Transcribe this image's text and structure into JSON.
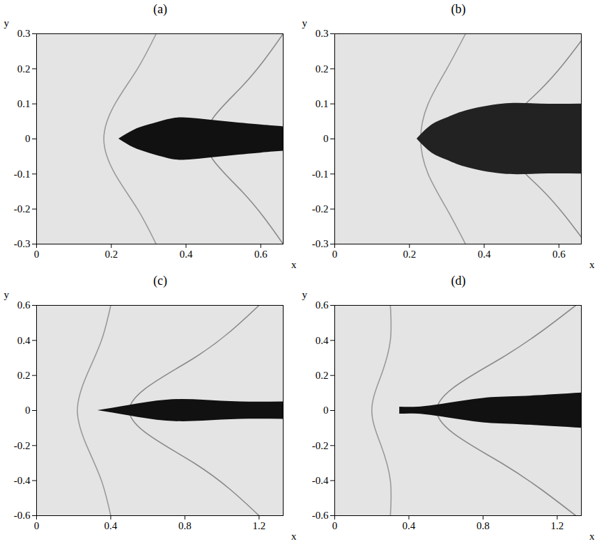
{
  "chart_data": [
    {
      "type": "line",
      "title": "(a)",
      "x_label": "x",
      "y_label": "y",
      "xlim": [
        0,
        0.66
      ],
      "ylim": [
        -0.3,
        0.3
      ],
      "xticks": [
        0,
        0.2,
        0.4,
        0.6
      ],
      "yticks": [
        -0.3,
        -0.2,
        -0.1,
        0,
        0.1,
        0.2,
        0.3
      ],
      "series": [
        {
          "type": "line",
          "color": "#9a9a9a",
          "x": [
            0.32,
            0.27,
            0.21,
            0.18,
            0.21,
            0.27,
            0.32
          ],
          "values": [
            -0.3,
            -0.2,
            -0.1,
            0,
            0.1,
            0.2,
            0.3
          ]
        },
        {
          "type": "line",
          "color": "#8a8a8a",
          "x": [
            0.66,
            0.55,
            0.45,
            0.55,
            0.66
          ],
          "values": [
            -0.3,
            -0.15,
            0,
            0.15,
            0.3
          ]
        },
        {
          "type": "area",
          "color": "#111111",
          "x": [
            0.22,
            0.26,
            0.3,
            0.35,
            0.4,
            0.5,
            0.6,
            0.66
          ],
          "values": [
            0,
            0.025,
            0.04,
            0.055,
            0.06,
            0.05,
            0.04,
            0.035
          ],
          "lower": [
            0,
            -0.025,
            -0.04,
            -0.055,
            -0.06,
            -0.05,
            -0.04,
            -0.035
          ]
        }
      ]
    },
    {
      "type": "line",
      "title": "(b)",
      "x_label": "x",
      "y_label": "y",
      "xlim": [
        0,
        0.66
      ],
      "ylim": [
        -0.3,
        0.3
      ],
      "xticks": [
        0,
        0.2,
        0.4,
        0.6
      ],
      "yticks": [
        -0.3,
        -0.2,
        -0.1,
        0,
        0.1,
        0.2,
        0.3
      ],
      "series": [
        {
          "type": "line",
          "color": "#9a9a9a",
          "x": [
            0.35,
            0.3,
            0.25,
            0.23,
            0.25,
            0.3,
            0.35
          ],
          "values": [
            -0.3,
            -0.2,
            -0.1,
            0,
            0.1,
            0.2,
            0.3
          ]
        },
        {
          "type": "line",
          "color": "#8a8a8a",
          "x": [
            0.66,
            0.55,
            0.45,
            0.55,
            0.66
          ],
          "values": [
            -0.28,
            -0.14,
            0,
            0.14,
            0.28
          ]
        },
        {
          "type": "area",
          "color": "#222222",
          "x": [
            0.22,
            0.26,
            0.3,
            0.35,
            0.45,
            0.55,
            0.66
          ],
          "values": [
            0,
            0.04,
            0.06,
            0.08,
            0.1,
            0.1,
            0.1
          ],
          "lower": [
            0,
            -0.04,
            -0.06,
            -0.08,
            -0.1,
            -0.1,
            -0.1
          ]
        }
      ]
    },
    {
      "type": "line",
      "title": "(c)",
      "x_label": "x",
      "y_label": "y",
      "xlim": [
        0,
        1.33
      ],
      "ylim": [
        -0.6,
        0.6
      ],
      "xticks": [
        0,
        0.4,
        0.8,
        1.2
      ],
      "yticks": [
        -0.6,
        -0.4,
        -0.2,
        0,
        0.2,
        0.4,
        0.6
      ],
      "series": [
        {
          "type": "line",
          "color": "#9a9a9a",
          "x": [
            0.4,
            0.35,
            0.27,
            0.22,
            0.27,
            0.35,
            0.4
          ],
          "values": [
            -0.6,
            -0.4,
            -0.2,
            0,
            0.2,
            0.4,
            0.6
          ]
        },
        {
          "type": "line",
          "color": "#8a8a8a",
          "x": [
            1.2,
            0.85,
            0.5,
            0.85,
            1.2
          ],
          "values": [
            -0.6,
            -0.3,
            0,
            0.3,
            0.6
          ]
        },
        {
          "type": "area",
          "color": "#111111",
          "x": [
            0.33,
            0.5,
            0.7,
            0.9,
            1.1,
            1.33
          ],
          "values": [
            0,
            0.03,
            0.06,
            0.06,
            0.05,
            0.05
          ],
          "lower": [
            0,
            -0.03,
            -0.06,
            -0.06,
            -0.05,
            -0.05
          ]
        }
      ]
    },
    {
      "type": "line",
      "title": "(d)",
      "x_label": "x",
      "y_label": "y",
      "xlim": [
        0,
        1.33
      ],
      "ylim": [
        -0.6,
        0.6
      ],
      "xticks": [
        0,
        0.4,
        0.8,
        1.2
      ],
      "yticks": [
        -0.6,
        -0.4,
        -0.2,
        0,
        0.2,
        0.4,
        0.6
      ],
      "series": [
        {
          "type": "line",
          "color": "#9a9a9a",
          "x": [
            0.3,
            0.3,
            0.25,
            0.2,
            0.25,
            0.3,
            0.3
          ],
          "values": [
            -0.6,
            -0.4,
            -0.2,
            0,
            0.2,
            0.4,
            0.6
          ]
        },
        {
          "type": "line",
          "color": "#8a8a8a",
          "x": [
            1.3,
            0.9,
            0.55,
            0.9,
            1.3
          ],
          "values": [
            -0.6,
            -0.3,
            0,
            0.3,
            0.6
          ]
        },
        {
          "type": "area",
          "color": "#111111",
          "x": [
            0.35,
            0.45,
            0.6,
            0.8,
            1.0,
            1.33
          ],
          "values": [
            0.02,
            0.02,
            0.04,
            0.07,
            0.08,
            0.1
          ],
          "lower": [
            -0.02,
            -0.02,
            -0.04,
            -0.07,
            -0.08,
            -0.1
          ]
        }
      ]
    }
  ]
}
